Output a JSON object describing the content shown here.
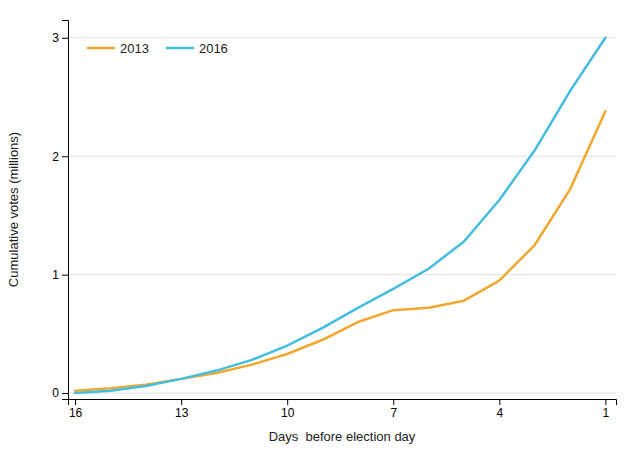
{
  "chart_data": {
    "type": "line",
    "x": [
      16,
      15,
      14,
      13,
      12,
      11,
      10,
      9,
      8,
      7,
      6,
      5,
      4,
      3,
      2,
      1
    ],
    "series": [
      {
        "name": "2013",
        "color": "#f0a830",
        "values": [
          0.02,
          0.04,
          0.07,
          0.12,
          0.17,
          0.24,
          0.33,
          0.45,
          0.6,
          0.7,
          0.72,
          0.78,
          0.95,
          1.25,
          1.72,
          2.38
        ]
      },
      {
        "name": "2016",
        "color": "#45bde0",
        "values": [
          0,
          0.02,
          0.06,
          0.12,
          0.19,
          0.28,
          0.4,
          0.55,
          0.72,
          0.88,
          1.05,
          1.28,
          1.63,
          2.05,
          2.55,
          3
        ]
      }
    ],
    "xlabel": "Days  before election day",
    "ylabel": "Cumulative votes (millions)",
    "xlim": [
      16.2,
      0.7
    ],
    "ylim": [
      -0.05,
      3.15
    ],
    "xticks": [
      16,
      13,
      10,
      7,
      4,
      1
    ],
    "yticks": [
      0,
      1,
      2,
      3
    ],
    "grid": true,
    "legend": "upper left"
  }
}
